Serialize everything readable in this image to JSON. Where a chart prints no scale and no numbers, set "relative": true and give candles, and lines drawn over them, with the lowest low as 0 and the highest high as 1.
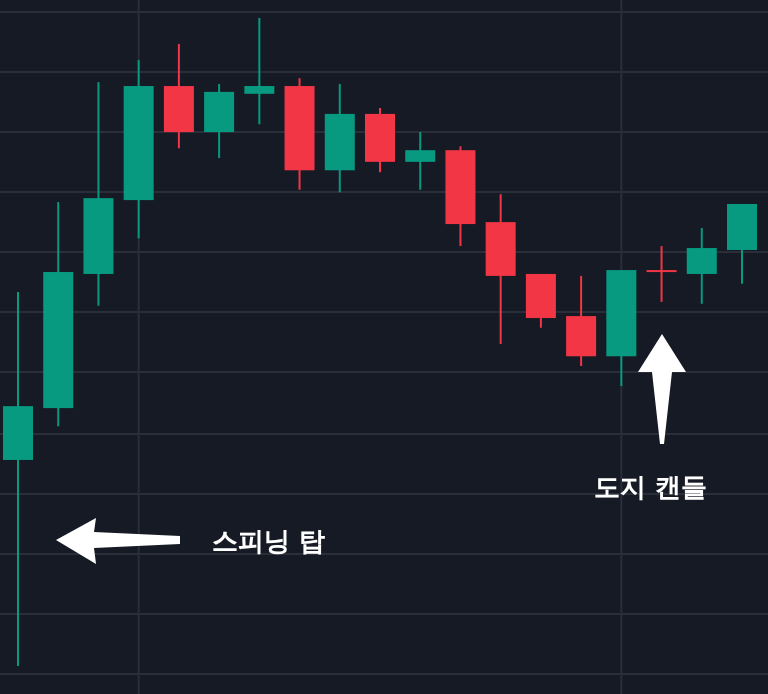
{
  "chart_data": {
    "type": "candlestick",
    "relative": true,
    "grid": true,
    "categories": [
      null,
      null,
      null,
      null,
      null,
      null,
      null,
      null,
      null,
      null,
      null,
      null,
      null,
      null,
      null,
      null,
      null,
      null,
      null
    ],
    "ohlc": [
      [
        0.318,
        0.577,
        0,
        0.401
      ],
      [
        0.398,
        0.716,
        0.37,
        0.608
      ],
      [
        0.605,
        0.901,
        0.556,
        0.722
      ],
      [
        0.719,
        0.935,
        0.66,
        0.895
      ],
      [
        0.895,
        0.96,
        0.799,
        0.824
      ],
      [
        0.824,
        0.898,
        0.784,
        0.886
      ],
      [
        0.883,
        1,
        0.836,
        0.895
      ],
      [
        0.895,
        0.907,
        0.735,
        0.765
      ],
      [
        0.765,
        0.898,
        0.731,
        0.852
      ],
      [
        0.852,
        0.861,
        0.762,
        0.778
      ],
      [
        0.778,
        0.824,
        0.735,
        0.796
      ],
      [
        0.796,
        0.802,
        0.648,
        0.682
      ],
      [
        0.685,
        0.728,
        0.497,
        0.602
      ],
      [
        0.605,
        0.605,
        0.522,
        0.537
      ],
      [
        0.54,
        0.602,
        0.463,
        0.478
      ],
      [
        0.478,
        0.611,
        0.432,
        0.611
      ],
      [
        0.611,
        0.648,
        0.562,
        0.611
      ],
      [
        0.605,
        0.676,
        0.559,
        0.645
      ],
      [
        0.642,
        0.713,
        0.59,
        0.713
      ]
    ],
    "colors": [
      "#089981",
      "#089981",
      "#089981",
      "#089981",
      "#f23645",
      "#089981",
      "#089981",
      "#f23645",
      "#089981",
      "#f23645",
      "#089981",
      "#f23645",
      "#f23645",
      "#f23645",
      "#f23645",
      "#089981",
      "#f23645",
      "#089981",
      "#089981"
    ],
    "annotations": [
      "스피닝 탑",
      "도지 캔들"
    ]
  }
}
